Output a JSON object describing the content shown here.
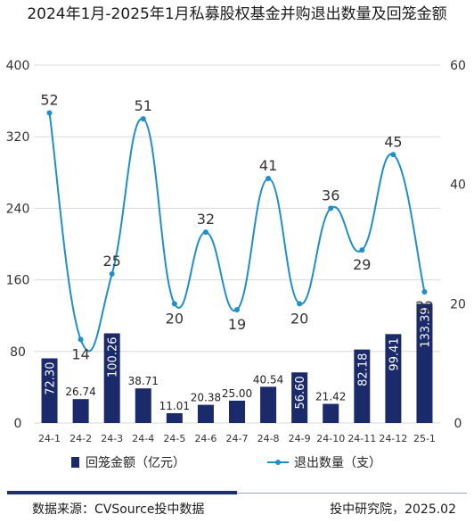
{
  "title": "2024年1月-2025年1月私募股权基金并购退出数量及回笼金额",
  "chart_data": {
    "type": "bar",
    "categories": [
      "24-1",
      "24-2",
      "24-3",
      "24-4",
      "24-5",
      "24-6",
      "24-7",
      "24-8",
      "24-9",
      "24-10",
      "24-11",
      "24-12",
      "25-1"
    ],
    "series": [
      {
        "name": "回笼金额（亿元）",
        "type": "bar",
        "axis": "left",
        "color": "#1b2a6b",
        "values": [
          72.3,
          26.74,
          100.26,
          38.71,
          11.01,
          20.38,
          25.0,
          40.54,
          56.6,
          21.42,
          82.18,
          99.41,
          133.39
        ]
      },
      {
        "name": "退出数量（支）",
        "type": "line",
        "axis": "right",
        "color": "#1f8fc9",
        "values": [
          52,
          14,
          25,
          51,
          20,
          32,
          19,
          41,
          20,
          36,
          29,
          45,
          22
        ]
      }
    ],
    "y_left": {
      "min": 0,
      "max": 400,
      "ticks": [
        0,
        80,
        160,
        240,
        320,
        400
      ]
    },
    "y_right": {
      "min": 0,
      "max": 60,
      "ticks": [
        0,
        20,
        40,
        60
      ]
    },
    "legend_position": "bottom"
  },
  "footer": {
    "source": "数据来源：CVSource投中数据",
    "credit": "投中研究院，2025.02"
  }
}
